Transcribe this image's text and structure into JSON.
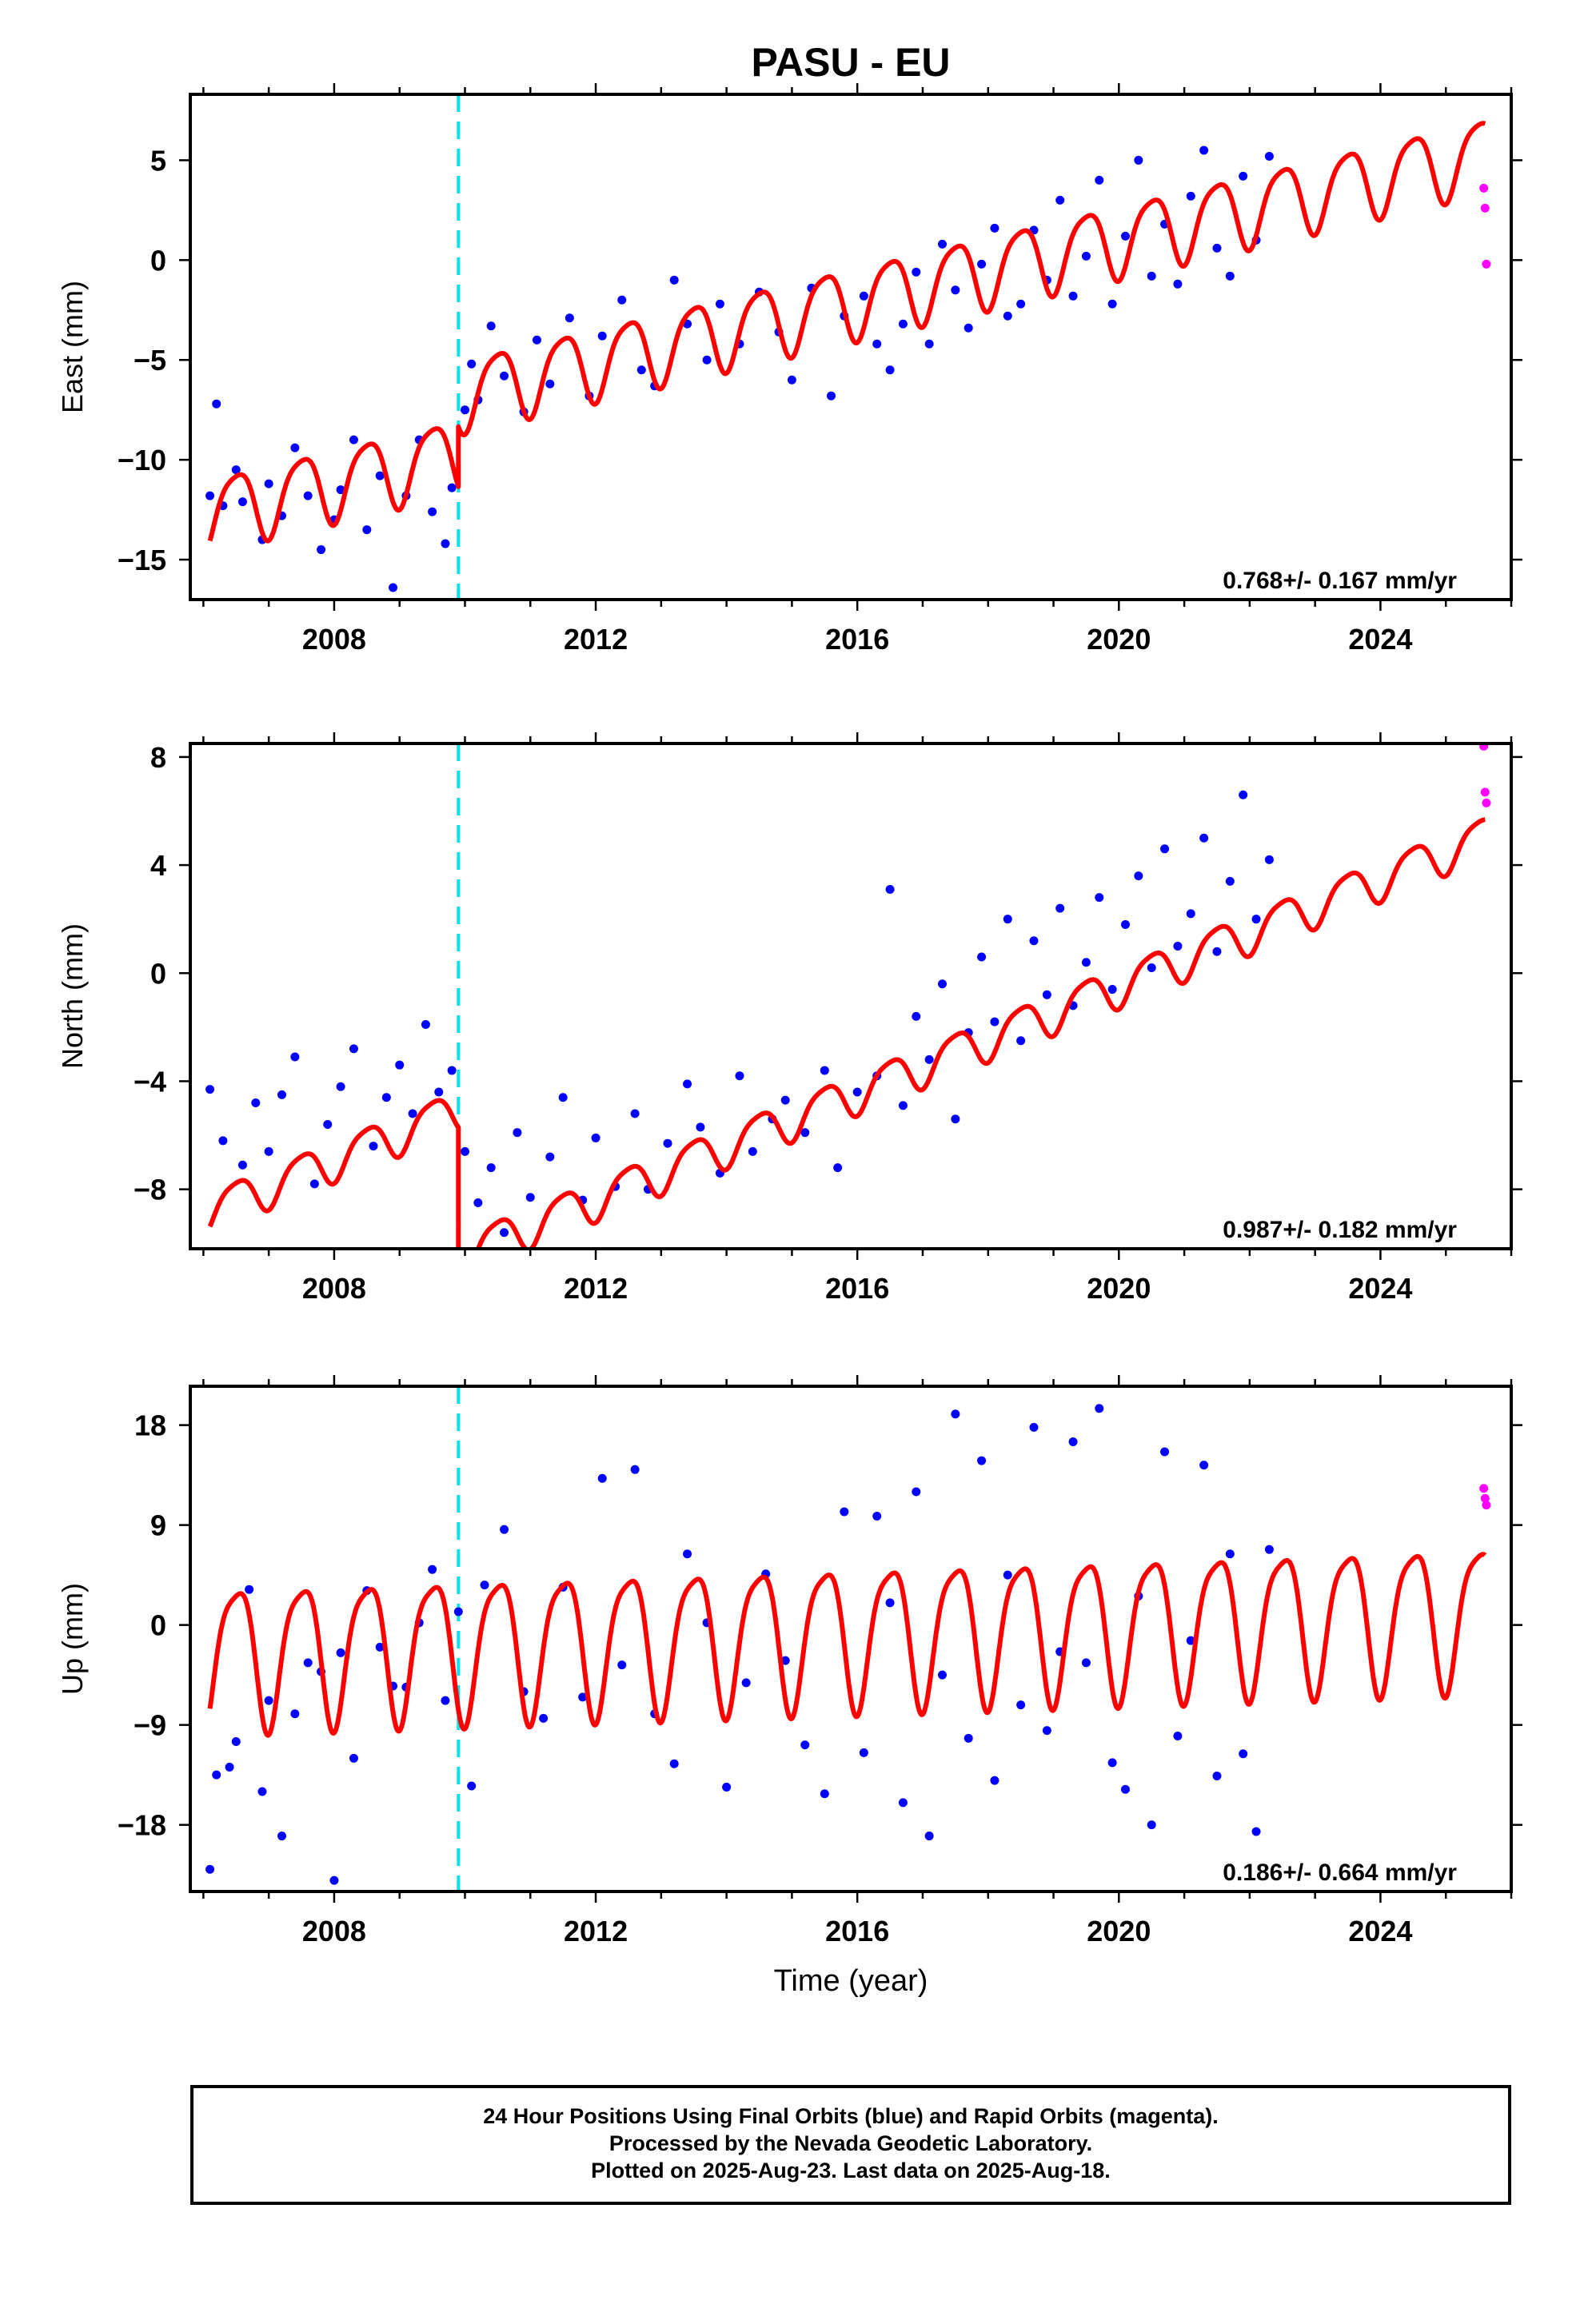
{
  "title": "PASU - EU",
  "xlabel": "Time (year)",
  "colors": {
    "final_orbits": "#0000ff",
    "rapid_orbits": "#ff00ff",
    "model": "#ff0000",
    "offset_marker": "#00e5ee"
  },
  "footer": {
    "line1": "24 Hour Positions Using Final Orbits (blue) and Rapid Orbits (magenta).",
    "line2": "Processed by the Nevada Geodetic Laboratory.",
    "line3": "Plotted on 2025-Aug-23. Last data on 2025-Aug-18."
  },
  "chart_data": [
    {
      "type": "scatter",
      "panel": "east",
      "ylabel": "East (mm)",
      "xlim": [
        2005.8,
        2026.0
      ],
      "ylim": [
        -17,
        8.3
      ],
      "xticks": [
        2008,
        2012,
        2016,
        2020,
        2024
      ],
      "yticks": [
        -15,
        -10,
        -5,
        0,
        5
      ],
      "ytick_labels": [
        "−15",
        "−10",
        "−5",
        "0",
        "5"
      ],
      "rate_label": "0.768+/- 0.167 mm/yr",
      "offset_epoch": 2009.9,
      "model": {
        "rate": 0.768,
        "offset_at": 2009.9,
        "offset": 3.0,
        "amp1": 1.8,
        "amp2": 0.35,
        "ref_year": 2016,
        "ref_value": -2.0,
        "start": 2006.1,
        "end": 2025.6
      },
      "series": [
        {
          "name": "Final Orbits",
          "color": "#0000ff",
          "x": [
            2006.1,
            2006.2,
            2006.3,
            2006.5,
            2006.6,
            2006.9,
            2007.0,
            2007.2,
            2007.4,
            2007.6,
            2007.8,
            2008.0,
            2008.1,
            2008.3,
            2008.5,
            2008.7,
            2008.9,
            2009.1,
            2009.3,
            2009.5,
            2009.7,
            2009.8,
            2010.0,
            2010.1,
            2010.2,
            2010.4,
            2010.6,
            2010.9,
            2011.1,
            2011.3,
            2011.6,
            2011.9,
            2012.1,
            2012.4,
            2012.7,
            2012.9,
            2013.2,
            2013.4,
            2013.7,
            2013.9,
            2014.2,
            2014.5,
            2014.8,
            2015.0,
            2015.3,
            2015.6,
            2015.8,
            2016.1,
            2016.3,
            2016.5,
            2016.7,
            2016.9,
            2017.1,
            2017.3,
            2017.5,
            2017.7,
            2017.9,
            2018.1,
            2018.3,
            2018.5,
            2018.7,
            2018.9,
            2019.1,
            2019.3,
            2019.5,
            2019.7,
            2019.9,
            2020.1,
            2020.3,
            2020.5,
            2020.7,
            2020.9,
            2021.1,
            2021.3,
            2021.5,
            2021.7,
            2021.9,
            2022.1,
            2022.3
          ],
          "y": [
            -11.8,
            -7.2,
            -12.3,
            -10.5,
            -12.1,
            -14.0,
            -11.2,
            -12.8,
            -9.4,
            -11.8,
            -14.5,
            -13.0,
            -11.5,
            -9.0,
            -13.5,
            -10.8,
            -16.4,
            -11.8,
            -9.0,
            -12.6,
            -14.2,
            -11.4,
            -7.5,
            -5.2,
            -7.0,
            -3.3,
            -5.8,
            -7.6,
            -4.0,
            -6.2,
            -2.9,
            -6.8,
            -3.8,
            -2.0,
            -5.5,
            -6.3,
            -1.0,
            -3.2,
            -5.0,
            -2.2,
            -4.2,
            -1.6,
            -3.6,
            -6.0,
            -1.4,
            -6.8,
            -2.8,
            -1.8,
            -4.2,
            -5.5,
            -3.2,
            -0.6,
            -4.2,
            0.8,
            -1.5,
            -3.4,
            -0.2,
            1.6,
            -2.8,
            -2.2,
            1.5,
            -1.0,
            3.0,
            -1.8,
            0.2,
            4.0,
            -2.2,
            1.2,
            5.0,
            -0.8,
            1.8,
            -1.2,
            3.2,
            5.5,
            0.6,
            -0.8,
            4.2,
            1.0,
            5.2
          ]
        },
        {
          "name": "Rapid Orbits",
          "color": "#ff00ff",
          "x": [
            2025.58,
            2025.6,
            2025.62
          ],
          "y": [
            3.6,
            2.6,
            -0.2
          ]
        }
      ]
    },
    {
      "type": "scatter",
      "panel": "north",
      "ylabel": "North (mm)",
      "xlim": [
        2005.8,
        2026.0
      ],
      "ylim": [
        -10.2,
        8.5
      ],
      "xticks": [
        2008,
        2012,
        2016,
        2020,
        2024
      ],
      "yticks": [
        -8,
        -4,
        0,
        4,
        8
      ],
      "ytick_labels": [
        "−8",
        "−4",
        "0",
        "4",
        "8"
      ],
      "rate_label": "0.987+/- 0.182 mm/yr",
      "offset_epoch": 2009.9,
      "model": {
        "rate": 0.987,
        "offset_at": 2009.9,
        "offset": -5.4,
        "amp1": 0.75,
        "amp2": 0.15,
        "ref_year": 2016,
        "ref_value": -4.4,
        "start": 2006.1,
        "end": 2025.6
      },
      "series": [
        {
          "name": "Final Orbits",
          "color": "#0000ff",
          "x": [
            2006.1,
            2006.3,
            2006.6,
            2006.8,
            2007.0,
            2007.2,
            2007.4,
            2007.7,
            2007.9,
            2008.1,
            2008.3,
            2008.6,
            2008.8,
            2009.0,
            2009.2,
            2009.4,
            2009.6,
            2009.8,
            2010.0,
            2010.2,
            2010.4,
            2010.6,
            2010.8,
            2011.0,
            2011.3,
            2011.5,
            2011.8,
            2012.0,
            2012.3,
            2012.6,
            2012.8,
            2013.1,
            2013.4,
            2013.6,
            2013.9,
            2014.2,
            2014.4,
            2014.7,
            2014.9,
            2015.2,
            2015.5,
            2015.7,
            2016.0,
            2016.3,
            2016.5,
            2016.7,
            2016.9,
            2017.1,
            2017.3,
            2017.5,
            2017.7,
            2017.9,
            2018.1,
            2018.3,
            2018.5,
            2018.7,
            2018.9,
            2019.1,
            2019.3,
            2019.5,
            2019.7,
            2019.9,
            2020.1,
            2020.3,
            2020.5,
            2020.7,
            2020.9,
            2021.1,
            2021.3,
            2021.5,
            2021.7,
            2021.9,
            2022.1,
            2022.3
          ],
          "y": [
            -4.3,
            -6.2,
            -7.1,
            -4.8,
            -6.6,
            -4.5,
            -3.1,
            -7.8,
            -5.6,
            -4.2,
            -2.8,
            -6.4,
            -4.6,
            -3.4,
            -5.2,
            -1.9,
            -4.4,
            -3.6,
            -6.6,
            -8.5,
            -7.2,
            -9.6,
            -5.9,
            -8.3,
            -6.8,
            -4.6,
            -8.4,
            -6.1,
            -7.9,
            -5.2,
            -8.0,
            -6.3,
            -4.1,
            -5.7,
            -7.4,
            -3.8,
            -6.6,
            -5.4,
            -4.7,
            -5.9,
            -3.6,
            -7.2,
            -4.4,
            -3.8,
            3.1,
            -4.9,
            -1.6,
            -3.2,
            -0.4,
            -5.4,
            -2.2,
            0.6,
            -1.8,
            2.0,
            -2.5,
            1.2,
            -0.8,
            2.4,
            -1.2,
            0.4,
            2.8,
            -0.6,
            1.8,
            3.6,
            0.2,
            4.6,
            1.0,
            2.2,
            5.0,
            0.8,
            3.4,
            6.6,
            2.0,
            4.2
          ]
        },
        {
          "name": "Rapid Orbits",
          "color": "#ff00ff",
          "x": [
            2025.58,
            2025.6,
            2025.62
          ],
          "y": [
            8.4,
            6.7,
            6.3
          ]
        }
      ]
    },
    {
      "type": "scatter",
      "panel": "up",
      "ylabel": "Up (mm)",
      "xlim": [
        2005.8,
        2026.0
      ],
      "ylim": [
        -24,
        21.5
      ],
      "xticks": [
        2008,
        2012,
        2016,
        2020,
        2024
      ],
      "yticks": [
        -18,
        -9,
        0,
        9,
        18
      ],
      "ytick_labels": [
        "−18",
        "−9",
        "0",
        "9",
        "18"
      ],
      "rate_label": "0.186+/- 0.664 mm/yr",
      "offset_epoch": 2009.9,
      "model": {
        "rate": 0.186,
        "offset_at": 2009.9,
        "offset": 0.0,
        "amp1": 6.3,
        "amp2": 1.4,
        "ref_year": 2016,
        "ref_value": -0.6,
        "start": 2006.1,
        "end": 2025.6
      },
      "series": [
        {
          "name": "Final Orbits",
          "color": "#0000ff",
          "x": [
            2006.1,
            2006.2,
            2006.4,
            2006.5,
            2006.7,
            2006.9,
            2007.0,
            2007.2,
            2007.4,
            2007.6,
            2007.8,
            2008.0,
            2008.1,
            2008.3,
            2008.5,
            2008.7,
            2008.9,
            2009.1,
            2009.3,
            2009.5,
            2009.7,
            2009.9,
            2010.1,
            2010.3,
            2010.6,
            2010.9,
            2011.2,
            2011.5,
            2011.8,
            2012.1,
            2012.4,
            2012.6,
            2012.9,
            2013.2,
            2013.4,
            2013.7,
            2014.0,
            2014.3,
            2014.6,
            2014.9,
            2015.2,
            2015.5,
            2015.8,
            2016.1,
            2016.3,
            2016.5,
            2016.7,
            2016.9,
            2017.1,
            2017.3,
            2017.5,
            2017.7,
            2017.9,
            2018.1,
            2018.3,
            2018.5,
            2018.7,
            2018.9,
            2019.1,
            2019.3,
            2019.5,
            2019.7,
            2019.9,
            2020.1,
            2020.3,
            2020.5,
            2020.7,
            2020.9,
            2021.1,
            2021.3,
            2021.5,
            2021.7,
            2021.9,
            2022.1,
            2022.3
          ],
          "y": [
            -22.0,
            -13.5,
            -12.8,
            -10.5,
            3.2,
            -15.0,
            -6.8,
            -19.0,
            -8.0,
            -3.4,
            -4.2,
            -23.0,
            -2.5,
            -12.0,
            3.1,
            -2.0,
            -5.5,
            -5.6,
            0.2,
            5.0,
            -6.8,
            1.2,
            -14.5,
            3.6,
            8.6,
            -6.0,
            -8.4,
            3.4,
            -6.5,
            13.2,
            -3.6,
            14.0,
            -8.0,
            -12.5,
            6.4,
            0.2,
            -14.6,
            -5.2,
            4.6,
            -3.2,
            -10.8,
            -15.2,
            10.2,
            -11.5,
            9.8,
            2.0,
            -16.0,
            12.0,
            -19.0,
            -4.5,
            19.0,
            -10.2,
            14.8,
            -14.0,
            4.5,
            -7.2,
            17.8,
            -9.5,
            -2.4,
            16.5,
            -3.4,
            19.5,
            -12.4,
            -14.8,
            2.6,
            -18.0,
            15.6,
            -10.0,
            -1.4,
            14.4,
            -13.6,
            6.4,
            -11.6,
            -18.6,
            6.8
          ]
        },
        {
          "name": "Rapid Orbits",
          "color": "#ff00ff",
          "x": [
            2025.58,
            2025.6,
            2025.62
          ],
          "y": [
            12.3,
            11.4,
            10.8
          ]
        }
      ]
    }
  ]
}
